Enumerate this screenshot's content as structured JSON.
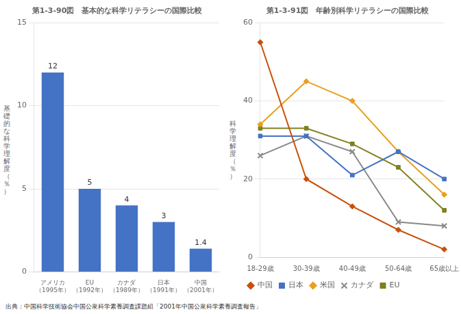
{
  "chart_data": [
    {
      "type": "bar",
      "title": "第1-3-90図　基本的な科学リテラシーの国際比較",
      "categories": [
        "アメリカ\n（1995年）",
        "EU\n（1992年）",
        "カナダ\n（1989年）",
        "日本\n（1991年）",
        "中国\n（2001年）"
      ],
      "values": [
        12,
        5,
        4,
        3,
        1.4
      ],
      "color": "#4472c4",
      "ylabel": "基\n礎\n的\nな\n科\n学\n理\n解\n度\n（\n％\n）",
      "ylim": [
        0,
        15
      ],
      "yticks": [
        0,
        5,
        10,
        15
      ],
      "grid": true,
      "data_labels": true
    },
    {
      "type": "line",
      "title": "第1-3-91図　年齢別科学リテラシーの国際比較",
      "categories": [
        "18-29歳",
        "30-39歳",
        "40-49歳",
        "50-64歳",
        "65歳以上"
      ],
      "series": [
        {
          "name": "中国",
          "color": "#c8500a",
          "marker": "diamond",
          "values": [
            55,
            20,
            13,
            7,
            2
          ]
        },
        {
          "name": "日本",
          "color": "#4472c4",
          "marker": "square",
          "values": [
            31,
            31,
            21,
            27,
            20
          ]
        },
        {
          "name": "米国",
          "color": "#e8a020",
          "marker": "diamond",
          "values": [
            34,
            45,
            40,
            27,
            16
          ]
        },
        {
          "name": "カナダ",
          "color": "#888888",
          "marker": "x",
          "values": [
            26,
            31,
            27,
            9,
            8
          ]
        },
        {
          "name": "EU",
          "color": "#808020",
          "marker": "square",
          "values": [
            33,
            33,
            29,
            23,
            12
          ]
        }
      ],
      "ylabel": "科\n学\n理\n解\n度\n（\n％\n）",
      "ylim": [
        0,
        60
      ],
      "yticks": [
        0,
        20,
        40,
        60
      ],
      "grid": true,
      "legend": "lower left"
    }
  ],
  "footer": "出典：中国科学技術協会中国公衆科学素養調査課題組「2001年中国公衆科学素養調査報告」"
}
